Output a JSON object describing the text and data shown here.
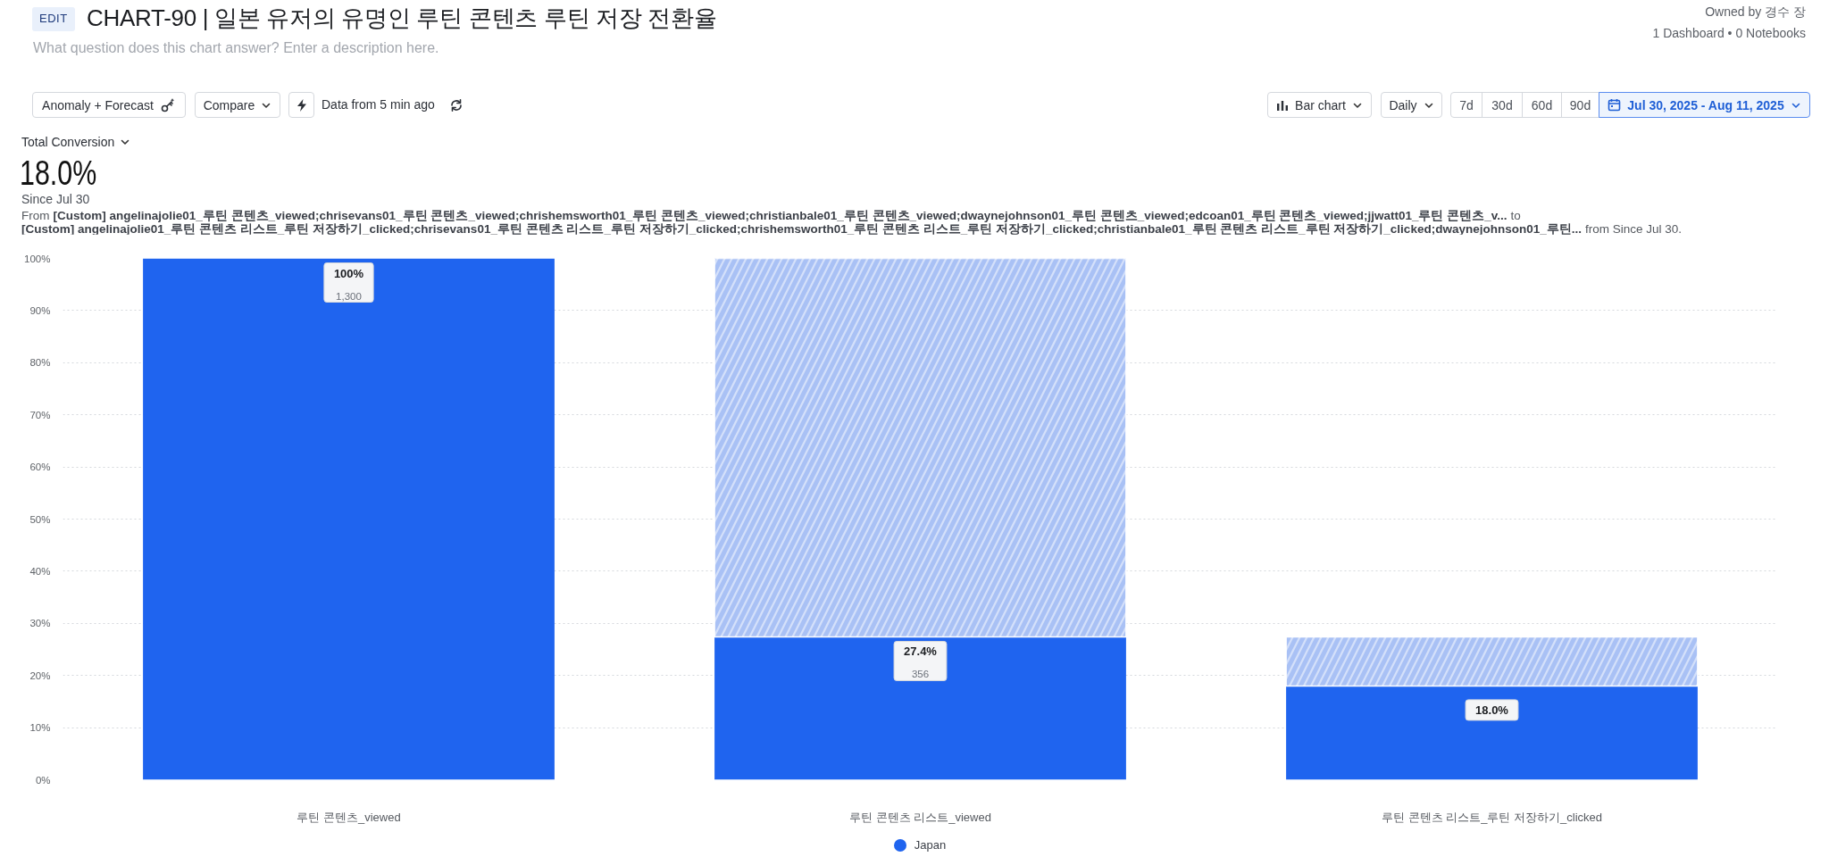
{
  "chart_data": {
    "type": "bar",
    "stacked": true,
    "title": "CHART-90 | 일본 유저의 유명인 루틴 콘텐츠 루틴 저장 전환율",
    "subtitle": "What question does this chart answer? Enter a description here.",
    "annotations": [
      "EDIT",
      "Owned by 경수 장",
      "1 Dashboard • 0 Notebooks",
      "Anomaly + Forecast",
      "Compare",
      "Data from 5 min ago",
      "Bar chart",
      "Daily",
      "7d",
      "30d",
      "60d",
      "90d",
      "Jul 30, 2025 - Aug 11, 2025",
      "Total Conversion",
      "18.0%",
      "Since Jul 30",
      "From",
      "[Custom] angelinajolie01_루틴 콘텐츠_viewed;chrisevans01_루틴 콘텐츠_viewed;chrishemsworth01_루틴 콘텐츠_viewed;christianbale01_루틴 콘텐츠_viewed;dwaynejohnson01_루틴 콘텐츠_viewed;edcoan01_루틴 콘텐츠_viewed;jjwatt01_루틴 콘텐츠_v...",
      "to",
      "[Custom] angelinajolie01_루틴 콘텐츠 리스트_루틴 저장하기_clicked;chrisevans01_루틴 콘텐츠 리스트_루틴 저장하기_clicked;chrishemsworth01_루틴 콘텐츠 리스트_루틴 저장하기_clicked;christianbale01_루틴 콘텐츠 리스트_루틴 저장하기_clicked;dwaynejohnson01_루틴...",
      "from Since Jul 30."
    ],
    "categories": [
      "루틴 콘텐츠_viewed",
      "루틴 콘텐츠 리스트_viewed",
      "루틴 콘텐츠 리스트_루틴 저장하기_clicked"
    ],
    "series": [
      {
        "name": "Japan",
        "color": "#1f64ef",
        "values": [
          100,
          27.4,
          18.0
        ],
        "value_labels": [
          "100%\n1,300",
          "27.4%\n356",
          "18.0%"
        ]
      },
      {
        "color": "#d4e0fa",
        "values": [
          null,
          72.6,
          9.4
        ]
      }
    ],
    "ylim": [
      0,
      100
    ],
    "yticks": [
      {
        "value": 0,
        "label": "0%"
      },
      {
        "value": 10,
        "label": "10%"
      },
      {
        "value": 20,
        "label": "20%"
      },
      {
        "value": 30,
        "label": "30%"
      },
      {
        "value": 40,
        "label": "40%"
      },
      {
        "value": 50,
        "label": "50%"
      },
      {
        "value": 60,
        "label": "60%"
      },
      {
        "value": 70,
        "label": "70%"
      },
      {
        "value": 80,
        "label": "80%"
      },
      {
        "value": 90,
        "label": "90%"
      },
      {
        "value": 100,
        "label": "100%"
      }
    ],
    "grid": "y",
    "legend": "bottom"
  }
}
